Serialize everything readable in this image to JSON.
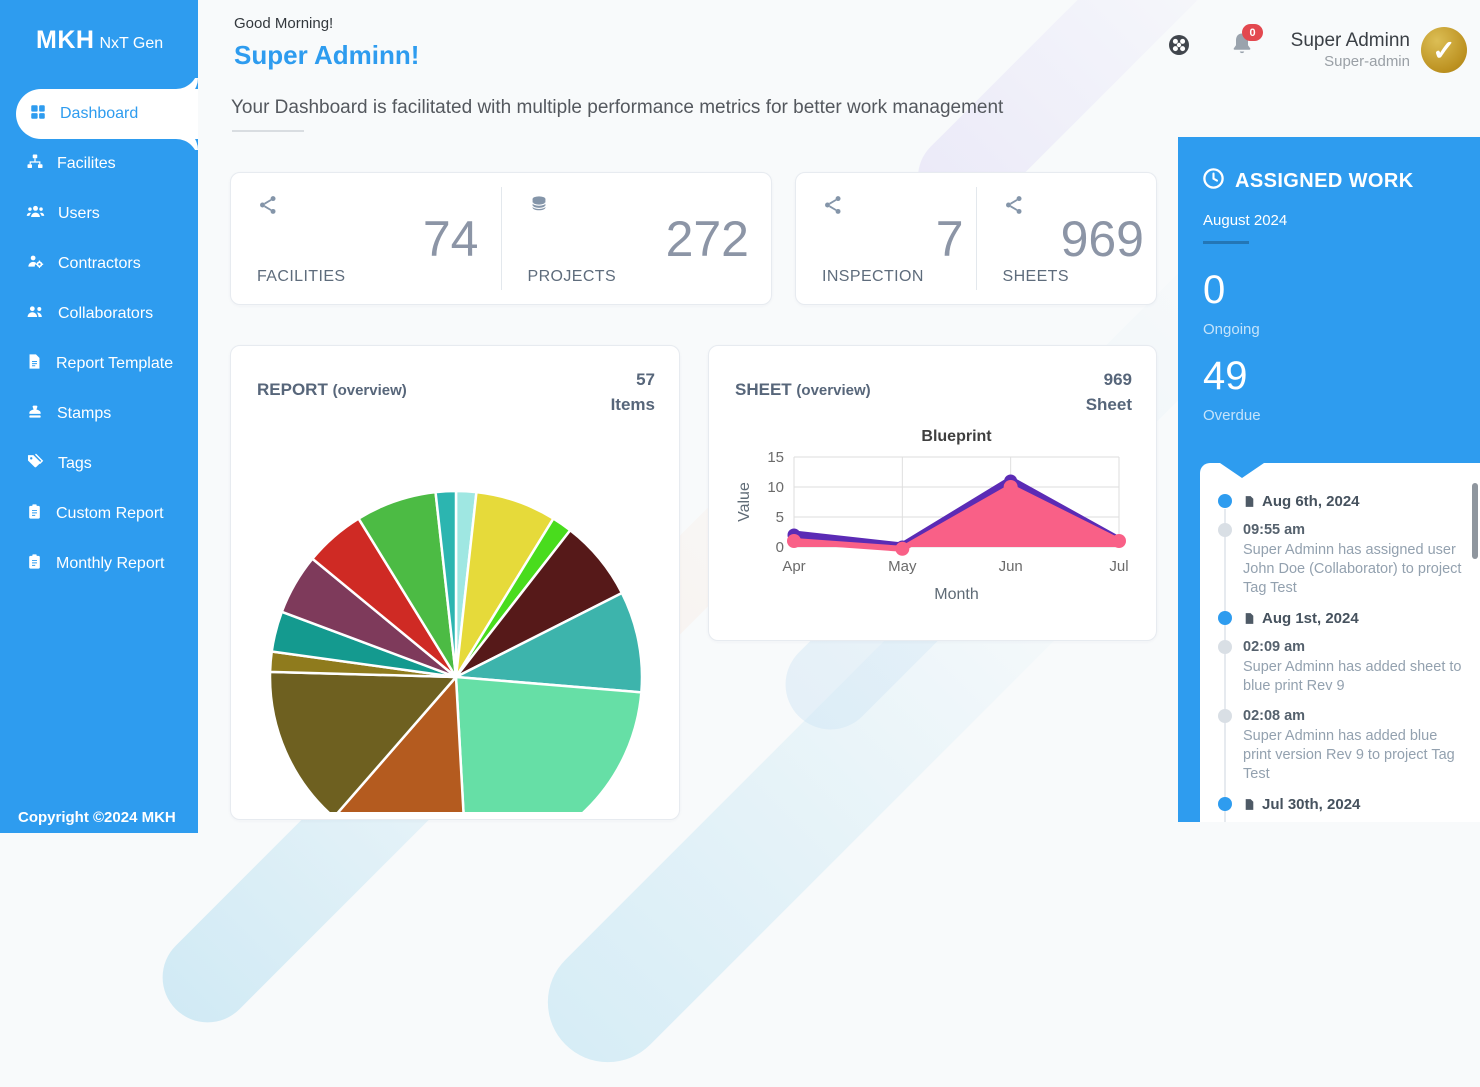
{
  "sidebar": {
    "logo_bold": "MKH",
    "logo_rest": "NxT Gen",
    "items": [
      {
        "label": "Dashboard",
        "icon": "dashboard-icon",
        "active": true
      },
      {
        "label": "Facilites",
        "icon": "facilities-icon",
        "active": false
      },
      {
        "label": "Users",
        "icon": "users-icon",
        "active": false
      },
      {
        "label": "Contractors",
        "icon": "contractors-icon",
        "active": false
      },
      {
        "label": "Collaborators",
        "icon": "collaborators-icon",
        "active": false
      },
      {
        "label": "Report Template",
        "icon": "report-template-icon",
        "active": false
      },
      {
        "label": "Stamps",
        "icon": "stamp-icon",
        "active": false
      },
      {
        "label": "Tags",
        "icon": "tag-icon",
        "active": false
      },
      {
        "label": "Custom Report",
        "icon": "clipboard-icon",
        "active": false
      },
      {
        "label": "Monthly Report",
        "icon": "clipboard-icon",
        "active": false
      }
    ],
    "copyright": "Copyright ©2024 MKH"
  },
  "header": {
    "greeting": "Good Morning!",
    "username": "Super Adminn!",
    "subtitle": "Your Dashboard is facilitated with multiple performance metrics for better work management",
    "notification_count": "0",
    "profile_name": "Super Adminn",
    "profile_role": "Super-admin",
    "avatar_check": "✓"
  },
  "stats": [
    {
      "label": "FACILITIES",
      "value": "74",
      "icon": "share-icon"
    },
    {
      "label": "PROJECTS",
      "value": "272",
      "icon": "database-icon"
    },
    {
      "label": "INSPECTION",
      "value": "7",
      "icon": "share-icon"
    },
    {
      "label": "SHEETS",
      "value": "969",
      "icon": "share-icon"
    }
  ],
  "report_card": {
    "title": "REPORT",
    "subtitle": "(overview)",
    "count": "57",
    "count_label": "Items"
  },
  "sheet_card": {
    "title": "SHEET",
    "subtitle": "(overview)",
    "count": "969",
    "count_label": "Sheet"
  },
  "chart_data": [
    {
      "type": "pie",
      "title": "REPORT (overview)",
      "total_items": 57,
      "slices": [
        {
          "value": 1,
          "color": "#9FE7E2"
        },
        {
          "value": 4,
          "color": "#E6DA3A"
        },
        {
          "value": 1,
          "color": "#49DC1D"
        },
        {
          "value": 4,
          "color": "#561919"
        },
        {
          "value": 5,
          "color": "#3DB4AC"
        },
        {
          "value": 13,
          "color": "#66DFA6"
        },
        {
          "value": 7,
          "color": "#B45B1F"
        },
        {
          "value": 8,
          "color": "#6E6020"
        },
        {
          "value": 1,
          "color": "#8F7B1D"
        },
        {
          "value": 2,
          "color": "#149A8F"
        },
        {
          "value": 3,
          "color": "#7E3A5B"
        },
        {
          "value": 3,
          "color": "#CF2A24"
        },
        {
          "value": 4,
          "color": "#4CBB44"
        },
        {
          "value": 1,
          "color": "#2CB5B0"
        }
      ]
    },
    {
      "type": "area",
      "title": "Blueprint",
      "xlabel": "Month",
      "ylabel": "Value",
      "x": [
        "Apr",
        "May",
        "Jun",
        "Jul"
      ],
      "ylim": [
        0,
        15
      ],
      "yticks": [
        0,
        5,
        10,
        15
      ],
      "grid": true,
      "series": [
        {
          "color": "#5B2BB5",
          "values": [
            2,
            0,
            11,
            1
          ],
          "filled": false
        },
        {
          "color": "#F96087",
          "values": [
            1,
            -0.3,
            10,
            1
          ],
          "filled": true
        }
      ]
    }
  ],
  "assigned": {
    "title": "ASSIGNED WORK",
    "month": "August 2024",
    "ongoing_value": "0",
    "ongoing_label": "Ongoing",
    "overdue_value": "49",
    "overdue_label": "Overdue",
    "timeline": [
      {
        "type": "date",
        "date": "Aug 6th, 2024"
      },
      {
        "type": "event",
        "time": "09:55 am",
        "text": "Super Adminn has assigned user John Doe (Collaborator) to project Tag Test"
      },
      {
        "type": "date",
        "date": "Aug 1st, 2024"
      },
      {
        "type": "event",
        "time": "02:09 am",
        "text": "Super Adminn has added sheet to blue print Rev 9"
      },
      {
        "type": "event",
        "time": "02:08 am",
        "text": "Super Adminn has added blue print version Rev 9 to project Tag Test"
      },
      {
        "type": "date",
        "date": "Jul 30th, 2024"
      }
    ]
  }
}
